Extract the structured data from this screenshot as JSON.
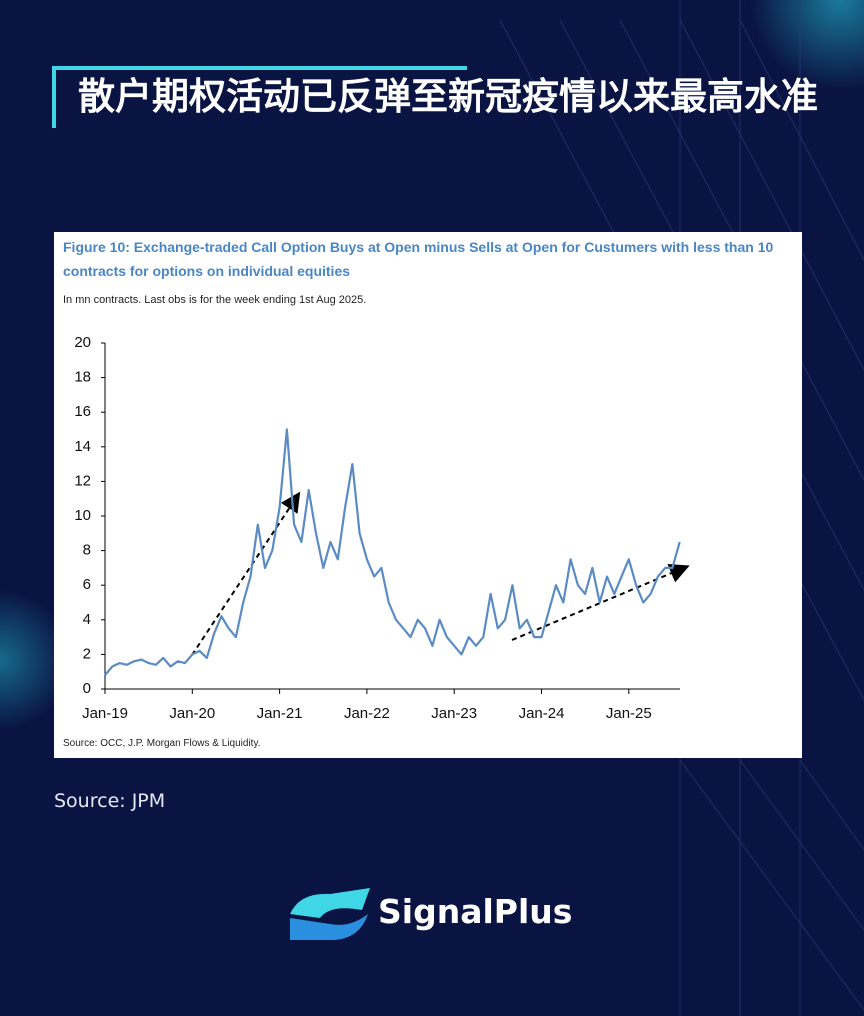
{
  "header_title": "散户期权活动已反弹至新冠疫情以来最高水准",
  "source_note": "Source: JPM",
  "brand": "SignalPlus",
  "chart_data": {
    "type": "line",
    "title": "Figure 10: Exchange-traded Call Option Buys at Open minus Sells at Open for Custumers with less than 10 contracts for options on individual equities",
    "subtitle": "In mn contracts. Last obs is for the week ending 1st Aug 2025.",
    "source": "Source: OCC, J.P. Morgan Flows & Liquidity.",
    "categories": [
      "Jan-19",
      null,
      null,
      null,
      null,
      null,
      null,
      null,
      null,
      null,
      null,
      null,
      "Jan-20",
      null,
      null,
      null,
      null,
      null,
      null,
      null,
      null,
      null,
      null,
      null,
      "Jan-21",
      null,
      null,
      null,
      null,
      null,
      null,
      null,
      null,
      null,
      null,
      null,
      "Jan-22",
      null,
      null,
      null,
      null,
      null,
      null,
      null,
      null,
      null,
      null,
      null,
      "Jan-23",
      null,
      null,
      null,
      null,
      null,
      null,
      null,
      null,
      null,
      null,
      null,
      "Jan-24",
      null,
      null,
      null,
      null,
      null,
      null,
      null,
      null,
      null,
      null,
      null,
      "Jan-25",
      null,
      null,
      null,
      null,
      null,
      null,
      null
    ],
    "values": [
      0.8,
      1.3,
      1.5,
      1.4,
      1.6,
      1.7,
      1.5,
      1.4,
      1.8,
      1.3,
      1.6,
      1.5,
      2.0,
      2.2,
      1.8,
      3.2,
      4.2,
      3.5,
      3.0,
      5.0,
      6.5,
      9.5,
      7.0,
      8.0,
      10.5,
      15.0,
      9.5,
      8.5,
      11.5,
      9.0,
      7.0,
      8.5,
      7.5,
      10.5,
      13.0,
      9.0,
      7.5,
      6.5,
      7.0,
      5.0,
      4.0,
      3.5,
      3.0,
      4.0,
      3.5,
      2.5,
      4.0,
      3.0,
      2.5,
      2.0,
      3.0,
      2.5,
      3.0,
      5.5,
      3.5,
      4.0,
      6.0,
      3.5,
      4.0,
      3.0,
      3.0,
      4.5,
      6.0,
      5.0,
      7.5,
      6.0,
      5.5,
      7.0,
      5.0,
      6.5,
      5.5,
      6.5,
      7.5,
      6.0,
      5.0,
      5.5,
      6.5,
      7.0,
      7.0,
      8.5
    ],
    "color": "#5b8bc4",
    "ylim": [
      0,
      20
    ],
    "yticks": [
      0,
      2,
      4,
      6,
      8,
      10,
      12,
      14,
      16,
      18,
      20
    ]
  }
}
